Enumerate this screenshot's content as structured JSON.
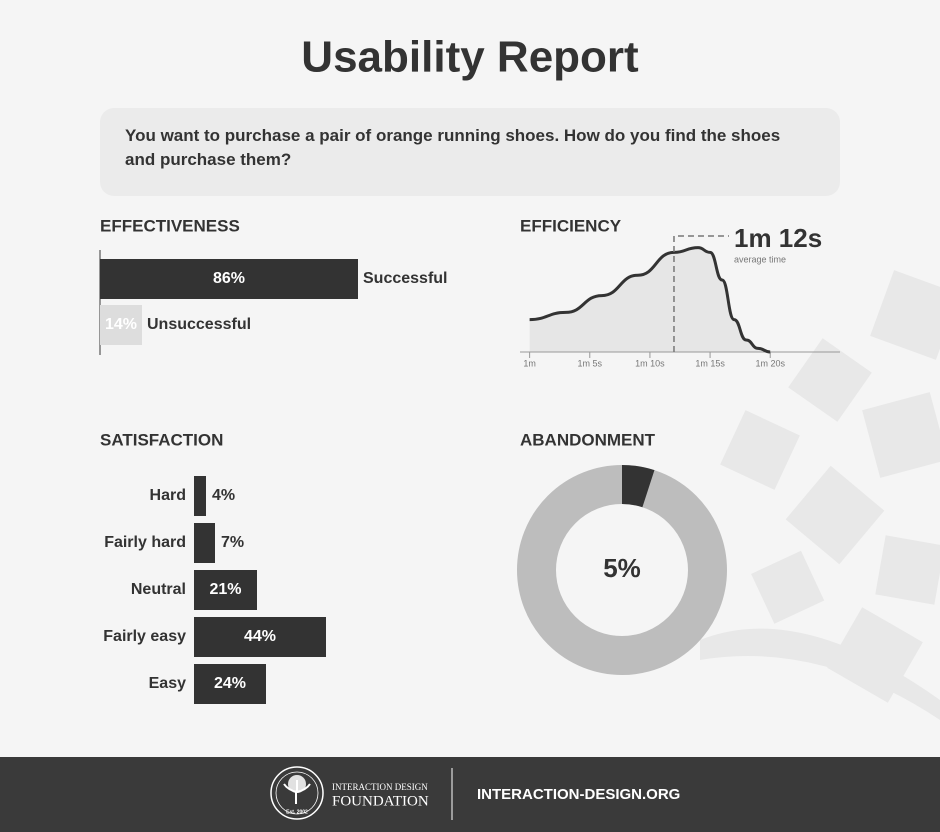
{
  "header": {
    "title": "Usability Report",
    "question": "You want to purchase a pair of orange running shoes. How do you find the shoes and purchase them?"
  },
  "chart_data": [
    {
      "type": "bar",
      "orientation": "horizontal",
      "title": "EFFECTIVENESS",
      "categories": [
        "Successful",
        "Unsuccessful"
      ],
      "values": [
        86,
        14
      ],
      "value_labels": [
        "86%",
        "14%"
      ],
      "colors": [
        "#333333",
        "#dddddd"
      ],
      "xlim": [
        0,
        100
      ]
    },
    {
      "type": "line",
      "title": "EFFICIENCY",
      "x": [
        60,
        63,
        66,
        69,
        72,
        74,
        75,
        76,
        77,
        78,
        79,
        80
      ],
      "values": [
        27,
        33,
        47,
        64,
        83,
        87,
        83,
        60,
        27,
        10,
        3,
        0
      ],
      "xlim": [
        59.2,
        85.8
      ],
      "ylim": [
        0,
        100
      ],
      "xticks": [
        {
          "value": 60,
          "label": "1m"
        },
        {
          "value": 65,
          "label": "1m 5s"
        },
        {
          "value": 70,
          "label": "1m 10s"
        },
        {
          "value": 75,
          "label": "1m 15s"
        },
        {
          "value": 80,
          "label": "1m 20s"
        }
      ],
      "annotation": {
        "x": 72,
        "label": "1m 12s",
        "sublabel": "average time"
      },
      "color": "#333333",
      "fill": "#e6e6e6"
    },
    {
      "type": "bar",
      "orientation": "horizontal",
      "title": "SATISFACTION",
      "categories": [
        "Hard",
        "Fairly hard",
        "Neutral",
        "Fairly easy",
        "Easy"
      ],
      "values": [
        4,
        7,
        21,
        44,
        24
      ],
      "value_labels": [
        "4%",
        "7%",
        "21%",
        "44%",
        "24%"
      ],
      "colors": [
        "#333333",
        "#333333",
        "#333333",
        "#333333",
        "#333333"
      ],
      "xlim": [
        0,
        100
      ]
    },
    {
      "type": "donut",
      "title": "ABANDONMENT",
      "values": [
        5
      ],
      "value_labels": [
        "5%"
      ],
      "colors": [
        "#333333"
      ],
      "track_color": "#bdbdbd"
    }
  ],
  "footer": {
    "org_line1": "INTERACTION DESIGN",
    "org_line2": "FOUNDATION",
    "est": "Est. 2002",
    "url": "INTERACTION-DESIGN.ORG"
  }
}
